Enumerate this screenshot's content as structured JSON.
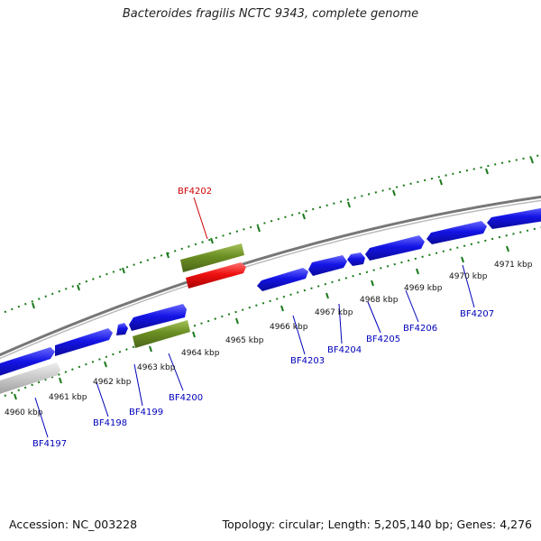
{
  "title": "Bacteroides fragilis NCTC 9343, complete genome",
  "footer": {
    "accession": "Accession: NC_003228",
    "summary": "Topology: circular; Length: 5,205,140 bp; Genes: 4,276"
  },
  "colors": {
    "forward_gene": "#1010e0",
    "reverse_gene": "#6b8e23",
    "highlight_gene": "#ee1111",
    "pseudo_gene": "#c0c0c0",
    "tick": "#1a7a1a",
    "backbone": "#777777",
    "label_blue": "#0000bb",
    "label_red": "#cc0000"
  },
  "scale_labels": [
    "4960 kbp",
    "4961 kbp",
    "4962 kbp",
    "4963 kbp",
    "4964 kbp",
    "4965 kbp",
    "4966 kbp",
    "4967 kbp",
    "4968 kbp",
    "4969 kbp",
    "4970 kbp",
    "4971 kbp"
  ],
  "gene_labels": [
    "BF4197",
    "BF4198",
    "BF4199",
    "BF4200",
    "BF4202",
    "BF4203",
    "BF4204",
    "BF4205",
    "BF4206",
    "BF4207"
  ]
}
